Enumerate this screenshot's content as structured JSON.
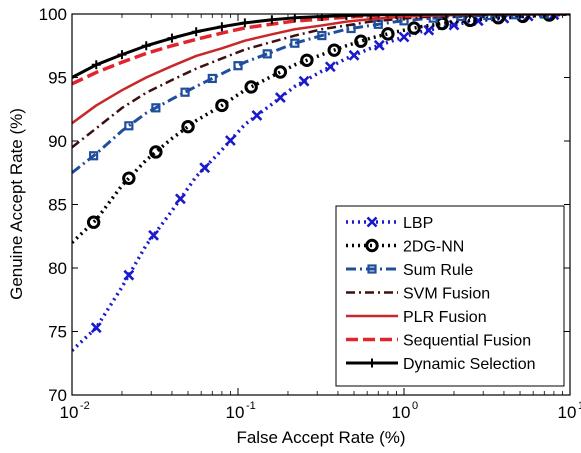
{
  "chart_data": {
    "type": "line",
    "xscale": "log",
    "xlim": [
      0.01,
      10
    ],
    "ylim": [
      70,
      100
    ],
    "xlabel": "False Accept Rate (%)",
    "ylabel": "Genuine Accept Rate (%)",
    "grid": false,
    "legend_position": "bottom-right",
    "x_ticks": [
      {
        "value": 0.01,
        "base": "10",
        "exp": "-2"
      },
      {
        "value": 0.1,
        "base": "10",
        "exp": "-1"
      },
      {
        "value": 1,
        "base": "10",
        "exp": "0"
      },
      {
        "value": 10,
        "base": "10",
        "exp": "1"
      }
    ],
    "y_ticks": [
      {
        "value": 70,
        "label": "70"
      },
      {
        "value": 75,
        "label": "75"
      },
      {
        "value": 80,
        "label": "80"
      },
      {
        "value": 85,
        "label": "85"
      },
      {
        "value": 90,
        "label": "90"
      },
      {
        "value": 95,
        "label": "95"
      },
      {
        "value": 100,
        "label": "100"
      }
    ],
    "series": [
      {
        "name": "LBP",
        "color": "#1a1acc",
        "dash": "2,4",
        "width": 3.5,
        "marker": "x",
        "marker_color": "#1a1acc",
        "x": [
          0.01,
          0.014,
          0.02,
          0.028,
          0.04,
          0.056,
          0.08,
          0.11,
          0.16,
          0.22,
          0.32,
          0.45,
          0.63,
          0.9,
          1.26,
          1.8,
          2.5,
          3.6,
          5,
          7,
          10
        ],
        "y": [
          73.5,
          75.3,
          78.5,
          81.8,
          84.5,
          87.2,
          89.3,
          91.3,
          92.9,
          94.3,
          95.5,
          96.5,
          97.3,
          98.0,
          98.6,
          99.0,
          99.4,
          99.6,
          99.8,
          99.9,
          100
        ],
        "marker_x": [
          0.014,
          0.022,
          0.031,
          0.045,
          0.063,
          0.09,
          0.13,
          0.18,
          0.25,
          0.36,
          0.5,
          0.71,
          1.0,
          1.41,
          2.0,
          2.8,
          4.0,
          5.6,
          8.0
        ]
      },
      {
        "name": "2DG-NN",
        "color": "#000000",
        "dash": "2,4",
        "width": 3.5,
        "marker": "o",
        "marker_color": "#000000",
        "x": [
          0.01,
          0.014,
          0.02,
          0.028,
          0.04,
          0.056,
          0.08,
          0.11,
          0.16,
          0.22,
          0.32,
          0.45,
          0.63,
          0.9,
          1.26,
          1.8,
          2.5,
          3.6,
          5,
          7,
          10
        ],
        "y": [
          82.0,
          83.8,
          86.5,
          88.5,
          90.2,
          91.6,
          92.8,
          94.0,
          95.1,
          96.0,
          96.8,
          97.5,
          98.1,
          98.6,
          99.0,
          99.3,
          99.5,
          99.7,
          99.8,
          99.9,
          100
        ],
        "marker_x": [
          0.0135,
          0.022,
          0.032,
          0.05,
          0.08,
          0.12,
          0.18,
          0.26,
          0.38,
          0.55,
          0.8,
          1.15,
          1.7,
          2.5,
          3.7,
          5.2,
          7.5
        ]
      },
      {
        "name": "Sum Rule",
        "color": "#1f4e9c",
        "dash": "10,4,2,4",
        "width": 3,
        "marker": "s",
        "marker_color": "#1f4e9c",
        "x": [
          0.01,
          0.014,
          0.02,
          0.028,
          0.04,
          0.056,
          0.08,
          0.11,
          0.16,
          0.22,
          0.32,
          0.45,
          0.63,
          0.9,
          1.26,
          1.8,
          2.5,
          3.6,
          5,
          7,
          10
        ],
        "y": [
          87.5,
          89.0,
          90.8,
          92.2,
          93.3,
          94.3,
          95.3,
          96.2,
          97.0,
          97.7,
          98.3,
          98.8,
          99.1,
          99.4,
          99.6,
          99.75,
          99.85,
          99.9,
          99.95,
          100,
          100
        ],
        "marker_x": [
          0.0135,
          0.022,
          0.032,
          0.048,
          0.07,
          0.1,
          0.15,
          0.22,
          0.32,
          0.48,
          0.7,
          1.0,
          1.5,
          2.2,
          3.2,
          4.7,
          7.0
        ]
      },
      {
        "name": "SVM Fusion",
        "color": "#3d1010",
        "dash": "9,4,2,4",
        "width": 2.5,
        "marker": "none",
        "marker_color": "#3d1010",
        "x": [
          0.01,
          0.014,
          0.02,
          0.028,
          0.04,
          0.056,
          0.08,
          0.11,
          0.16,
          0.22,
          0.32,
          0.45,
          0.63,
          0.9,
          1.26,
          1.8,
          2.5,
          3.6,
          5,
          7,
          10
        ],
        "y": [
          89.5,
          91.0,
          92.6,
          93.8,
          94.8,
          95.7,
          96.5,
          97.2,
          97.8,
          98.3,
          98.8,
          99.1,
          99.4,
          99.6,
          99.75,
          99.85,
          99.9,
          99.95,
          100,
          100,
          100
        ],
        "marker_x": []
      },
      {
        "name": "PLR Fusion",
        "color": "#c8282a",
        "dash": "",
        "width": 2.5,
        "marker": "none",
        "marker_color": "#c8282a",
        "x": [
          0.01,
          0.014,
          0.02,
          0.028,
          0.04,
          0.056,
          0.08,
          0.11,
          0.16,
          0.22,
          0.32,
          0.45,
          0.63,
          0.9,
          1.26,
          1.8,
          2.5,
          3.6,
          5,
          7,
          10
        ],
        "y": [
          91.4,
          92.8,
          94.0,
          95.0,
          95.9,
          96.7,
          97.3,
          97.9,
          98.4,
          98.8,
          99.1,
          99.4,
          99.6,
          99.75,
          99.85,
          99.9,
          99.95,
          100,
          100,
          100,
          100
        ],
        "marker_x": []
      },
      {
        "name": "Sequential Fusion",
        "color": "#e0262c",
        "dash": "12,5",
        "width": 3.5,
        "marker": "none",
        "marker_color": "#e0262c",
        "x": [
          0.01,
          0.014,
          0.02,
          0.028,
          0.04,
          0.056,
          0.08,
          0.11,
          0.16,
          0.22,
          0.32,
          0.45,
          0.63,
          0.9,
          1.26,
          1.8,
          2.5,
          3.6,
          5,
          7,
          10
        ],
        "y": [
          94.5,
          95.4,
          96.2,
          96.9,
          97.5,
          98.0,
          98.5,
          98.9,
          99.2,
          99.45,
          99.6,
          99.75,
          99.85,
          99.9,
          99.95,
          100,
          100,
          100,
          100,
          100,
          100
        ],
        "marker_x": []
      },
      {
        "name": "Dynamic Selection",
        "color": "#000000",
        "dash": "",
        "width": 3,
        "marker": "+",
        "marker_color": "#000000",
        "x": [
          0.01,
          0.014,
          0.02,
          0.028,
          0.04,
          0.056,
          0.08,
          0.11,
          0.16,
          0.22,
          0.32,
          0.45,
          0.63,
          0.9,
          1.26,
          1.8,
          2.5,
          3.6,
          5,
          7,
          10
        ],
        "y": [
          95.0,
          96.0,
          96.8,
          97.5,
          98.1,
          98.6,
          99.0,
          99.3,
          99.55,
          99.7,
          99.8,
          99.88,
          99.93,
          99.96,
          99.98,
          100,
          100,
          100,
          100,
          100,
          100
        ],
        "marker_x": [
          0.014,
          0.02,
          0.028,
          0.04,
          0.056,
          0.08,
          0.11,
          0.16,
          0.22,
          0.32,
          0.45,
          0.63,
          0.9,
          1.26,
          1.8,
          2.5,
          3.6,
          5,
          7
        ]
      }
    ]
  }
}
